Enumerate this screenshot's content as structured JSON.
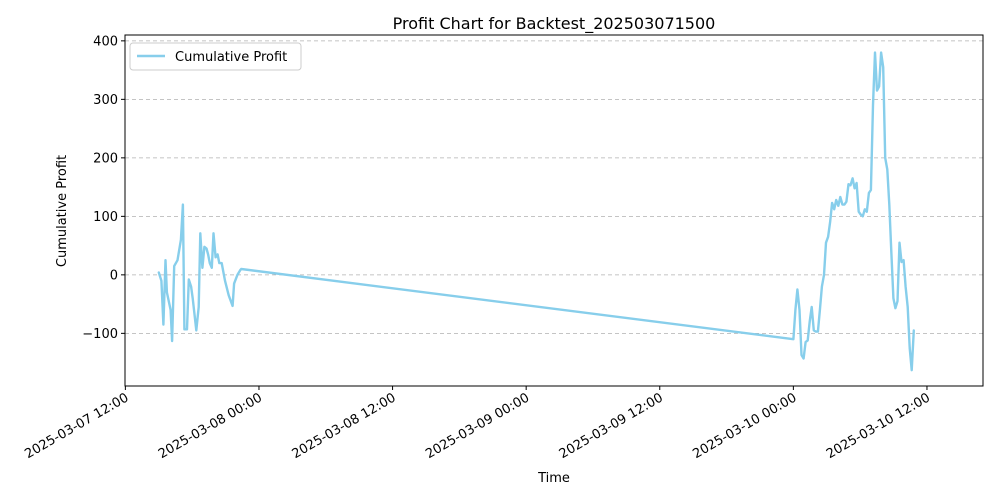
{
  "chart_data": {
    "type": "line",
    "title": "Profit Chart for Backtest_202503071500",
    "xlabel": "Time",
    "ylabel": "Cumulative Profit",
    "xlim": [
      "2025-03-07 11:58",
      "2025-03-10 17:02"
    ],
    "ylim": [
      -190,
      410
    ],
    "grid": {
      "x": false,
      "y": true,
      "style": "dashed"
    },
    "legend": {
      "placement": "top-left"
    },
    "x_ticks": [
      {
        "t": "2025-03-07 12:00",
        "label": "2025-03-07 12:00"
      },
      {
        "t": "2025-03-08 00:00",
        "label": "2025-03-08 00:00"
      },
      {
        "t": "2025-03-08 12:00",
        "label": "2025-03-08 12:00"
      },
      {
        "t": "2025-03-09 00:00",
        "label": "2025-03-09 00:00"
      },
      {
        "t": "2025-03-09 12:00",
        "label": "2025-03-09 12:00"
      },
      {
        "t": "2025-03-10 00:00",
        "label": "2025-03-10 00:00"
      },
      {
        "t": "2025-03-10 12:00",
        "label": "2025-03-10 12:00"
      }
    ],
    "y_ticks": [
      {
        "v": -100,
        "label": "−100"
      },
      {
        "v": 0,
        "label": "0"
      },
      {
        "v": 100,
        "label": "100"
      },
      {
        "v": 200,
        "label": "200"
      },
      {
        "v": 300,
        "label": "300"
      },
      {
        "v": 400,
        "label": "400"
      }
    ],
    "series": [
      {
        "name": "Cumulative Profit",
        "color": "#87ceeb",
        "points": [
          [
            "2025-03-07 15:00",
            4
          ],
          [
            "2025-03-07 15:14",
            -10
          ],
          [
            "2025-03-07 15:25",
            -85
          ],
          [
            "2025-03-07 15:36",
            25
          ],
          [
            "2025-03-07 15:44",
            -30
          ],
          [
            "2025-03-07 16:04",
            -60
          ],
          [
            "2025-03-07 16:12",
            -113
          ],
          [
            "2025-03-07 16:23",
            15
          ],
          [
            "2025-03-07 16:41",
            25
          ],
          [
            "2025-03-07 16:59",
            60
          ],
          [
            "2025-03-07 17:10",
            120
          ],
          [
            "2025-03-07 17:18",
            -93
          ],
          [
            "2025-03-07 17:32",
            -93
          ],
          [
            "2025-03-07 17:42",
            -8
          ],
          [
            "2025-03-07 17:54",
            -20
          ],
          [
            "2025-03-07 18:03",
            -40
          ],
          [
            "2025-03-07 18:22",
            -95
          ],
          [
            "2025-03-07 18:35",
            -55
          ],
          [
            "2025-03-07 18:44",
            71
          ],
          [
            "2025-03-07 18:55",
            12
          ],
          [
            "2025-03-07 19:06",
            48
          ],
          [
            "2025-03-07 19:17",
            45
          ],
          [
            "2025-03-07 19:26",
            35
          ],
          [
            "2025-03-07 19:35",
            20
          ],
          [
            "2025-03-07 19:46",
            12
          ],
          [
            "2025-03-07 19:55",
            71
          ],
          [
            "2025-03-07 20:06",
            30
          ],
          [
            "2025-03-07 20:17",
            35
          ],
          [
            "2025-03-07 20:26",
            20
          ],
          [
            "2025-03-07 20:39",
            20
          ],
          [
            "2025-03-07 20:57",
            -10
          ],
          [
            "2025-03-07 21:17",
            -35
          ],
          [
            "2025-03-07 21:38",
            -53
          ],
          [
            "2025-03-07 21:46",
            -15
          ],
          [
            "2025-03-07 22:04",
            0
          ],
          [
            "2025-03-07 22:19",
            8
          ],
          [
            "2025-03-07 22:24",
            10
          ],
          [
            "2025-03-10 00:00",
            -110
          ],
          [
            "2025-03-10 00:11",
            -60
          ],
          [
            "2025-03-10 00:22",
            -25
          ],
          [
            "2025-03-10 00:33",
            -60
          ],
          [
            "2025-03-10 00:44",
            -137
          ],
          [
            "2025-03-10 00:55",
            -143
          ],
          [
            "2025-03-10 01:06",
            -115
          ],
          [
            "2025-03-10 01:17",
            -112
          ],
          [
            "2025-03-10 01:28",
            -80
          ],
          [
            "2025-03-10 01:39",
            -55
          ],
          [
            "2025-03-10 01:50",
            -95
          ],
          [
            "2025-03-10 02:01",
            -97
          ],
          [
            "2025-03-10 02:12",
            -97
          ],
          [
            "2025-03-10 02:23",
            -60
          ],
          [
            "2025-03-10 02:34",
            -20
          ],
          [
            "2025-03-10 02:45",
            0
          ],
          [
            "2025-03-10 02:56",
            55
          ],
          [
            "2025-03-10 03:07",
            65
          ],
          [
            "2025-03-10 03:18",
            90
          ],
          [
            "2025-03-10 03:29",
            123
          ],
          [
            "2025-03-10 03:40",
            112
          ],
          [
            "2025-03-10 03:51",
            128
          ],
          [
            "2025-03-10 04:02",
            118
          ],
          [
            "2025-03-10 04:13",
            133
          ],
          [
            "2025-03-10 04:24",
            120
          ],
          [
            "2025-03-10 04:35",
            120
          ],
          [
            "2025-03-10 04:46",
            125
          ],
          [
            "2025-03-10 04:57",
            155
          ],
          [
            "2025-03-10 05:08",
            153
          ],
          [
            "2025-03-10 05:19",
            165
          ],
          [
            "2025-03-10 05:30",
            148
          ],
          [
            "2025-03-10 05:41",
            157
          ],
          [
            "2025-03-10 05:52",
            108
          ],
          [
            "2025-03-10 06:03",
            103
          ],
          [
            "2025-03-10 06:14",
            100
          ],
          [
            "2025-03-10 06:25",
            112
          ],
          [
            "2025-03-10 06:36",
            108
          ],
          [
            "2025-03-10 06:47",
            140
          ],
          [
            "2025-03-10 06:58",
            145
          ],
          [
            "2025-03-10 07:09",
            290
          ],
          [
            "2025-03-10 07:20",
            380
          ],
          [
            "2025-03-10 07:31",
            315
          ],
          [
            "2025-03-10 07:42",
            322
          ],
          [
            "2025-03-10 07:53",
            380
          ],
          [
            "2025-03-10 08:04",
            355
          ],
          [
            "2025-03-10 08:15",
            200
          ],
          [
            "2025-03-10 08:26",
            180
          ],
          [
            "2025-03-10 08:37",
            120
          ],
          [
            "2025-03-10 08:48",
            40
          ],
          [
            "2025-03-10 08:59",
            -40
          ],
          [
            "2025-03-10 09:10",
            -57
          ],
          [
            "2025-03-10 09:21",
            -45
          ],
          [
            "2025-03-10 09:32",
            55
          ],
          [
            "2025-03-10 09:43",
            22
          ],
          [
            "2025-03-10 09:54",
            25
          ],
          [
            "2025-03-10 10:05",
            -20
          ],
          [
            "2025-03-10 10:16",
            -55
          ],
          [
            "2025-03-10 10:27",
            -125
          ],
          [
            "2025-03-10 10:38",
            -163
          ],
          [
            "2025-03-10 10:49",
            -95
          ]
        ]
      }
    ]
  }
}
